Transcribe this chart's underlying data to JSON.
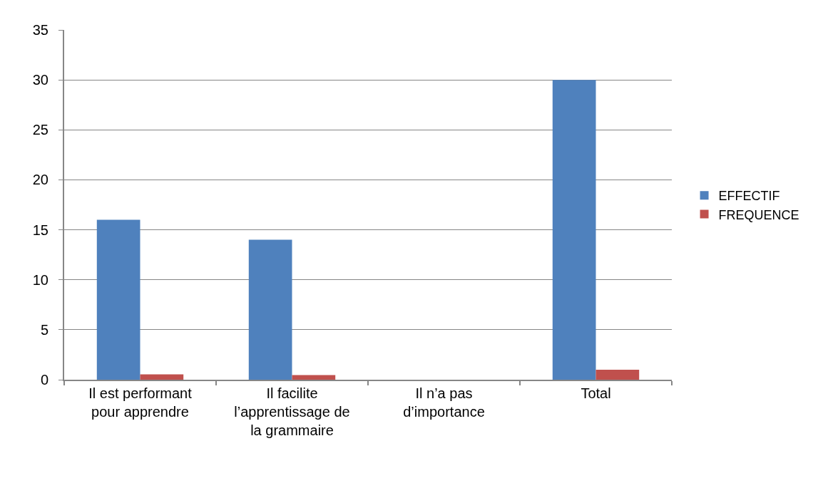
{
  "chart_data": {
    "type": "bar",
    "categories": [
      "Il est performant pour apprendre",
      "Il facilite l’apprentissage de la grammaire",
      "Il n’a pas d’importance",
      "Total"
    ],
    "series": [
      {
        "name": "EFFECTIF",
        "color": "#4f81bd",
        "values": [
          16,
          14,
          0,
          30
        ]
      },
      {
        "name": "FREQUENCE",
        "color": "#c0504d",
        "values": [
          0.53,
          0.47,
          0,
          1
        ]
      }
    ],
    "ylim": [
      0,
      35
    ],
    "yticks": [
      0,
      5,
      10,
      15,
      20,
      25,
      30,
      35
    ],
    "grid": "y",
    "legend": "right"
  }
}
